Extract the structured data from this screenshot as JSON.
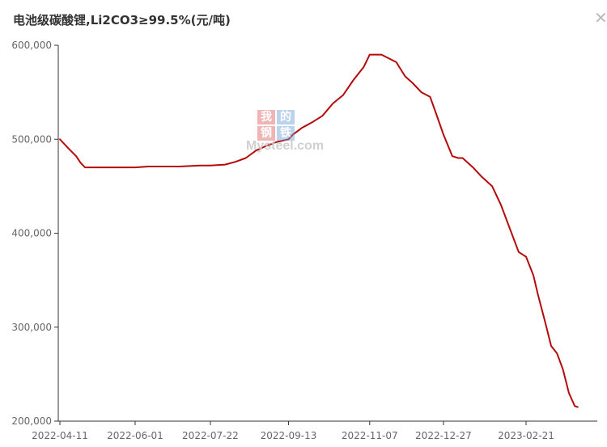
{
  "header": {
    "title": "电池级碳酸锂,Li2CO3≥99.5%(元/吨)",
    "close_icon": "close-icon",
    "close_glyph": "✕"
  },
  "watermark": {
    "chars": [
      "我",
      "的",
      "钢",
      "铁"
    ],
    "text": "Mysteel.com"
  },
  "chart_data": {
    "type": "line",
    "title": "电池级碳酸锂,Li2CO3≥99.5%(元/吨)",
    "xlabel": "",
    "ylabel": "",
    "ylim": [
      200000,
      600000
    ],
    "yticks": [
      200000,
      300000,
      400000,
      500000,
      600000
    ],
    "ytick_labels": [
      "200,000",
      "300,000",
      "400,000",
      "500,000",
      "600,000"
    ],
    "xticks": [
      "2022-04-11",
      "2022-06-01",
      "2022-07-22",
      "2022-09-13",
      "2022-11-07",
      "2022-12-27",
      "2023-02-21"
    ],
    "grid": false,
    "legend": "none",
    "line_color": "#b40a0a",
    "series": [
      {
        "x": [
          "2022-04-11",
          "2022-04-17",
          "2022-04-22",
          "2022-04-25",
          "2022-04-28",
          "2022-05-06",
          "2022-05-15",
          "2022-06-01",
          "2022-06-10",
          "2022-06-20",
          "2022-07-01",
          "2022-07-15",
          "2022-07-22",
          "2022-08-01",
          "2022-08-08",
          "2022-08-15",
          "2022-08-22",
          "2022-08-29",
          "2022-09-05",
          "2022-09-13",
          "2022-09-16",
          "2022-09-22",
          "2022-09-29",
          "2022-10-06",
          "2022-10-13",
          "2022-10-20",
          "2022-10-27",
          "2022-11-03",
          "2022-11-07",
          "2022-11-11",
          "2022-11-15",
          "2022-11-25",
          "2022-12-01",
          "2022-12-06",
          "2022-12-12",
          "2022-12-18",
          "2022-12-23",
          "2022-12-27",
          "2023-01-02",
          "2023-01-06",
          "2023-01-09",
          "2023-01-16",
          "2023-01-22",
          "2023-01-29",
          "2023-02-04",
          "2023-02-10",
          "2023-02-16",
          "2023-02-21",
          "2023-02-26",
          "2023-03-01",
          "2023-03-06",
          "2023-03-10",
          "2023-03-14",
          "2023-03-18",
          "2023-03-22",
          "2023-03-26",
          "2023-03-28"
        ],
        "values": [
          500000,
          490000,
          482000,
          475000,
          470000,
          470000,
          470000,
          470000,
          471000,
          471000,
          471000,
          472000,
          472000,
          473000,
          476000,
          480000,
          488000,
          493000,
          497000,
          500000,
          505000,
          512000,
          518000,
          525000,
          538000,
          547000,
          563000,
          577000,
          590000,
          590000,
          590000,
          582000,
          567000,
          560000,
          550000,
          545000,
          523000,
          505000,
          482000,
          480000,
          480000,
          470000,
          460000,
          450000,
          430000,
          405000,
          380000,
          375000,
          355000,
          335000,
          305000,
          280000,
          272000,
          255000,
          230000,
          216000,
          215000
        ]
      }
    ]
  }
}
